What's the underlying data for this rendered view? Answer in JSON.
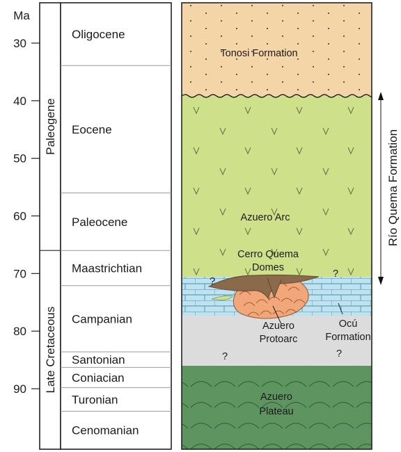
{
  "axis": {
    "unit_label": "Ma",
    "ticks": [
      "30",
      "40",
      "50",
      "60",
      "70",
      "80",
      "90"
    ]
  },
  "periods": [
    {
      "label": "Paleogene",
      "from_ma": 23.0,
      "to_ma": 66.0
    },
    {
      "label": "Late Cretaceous",
      "from_ma": 66.0,
      "to_ma": 100.5
    }
  ],
  "stages": [
    {
      "label": "Oligocene",
      "from_ma": 23.0,
      "to_ma": 33.9
    },
    {
      "label": "Eocene",
      "from_ma": 33.9,
      "to_ma": 56.0
    },
    {
      "label": "Paleocene",
      "from_ma": 56.0,
      "to_ma": 66.0
    },
    {
      "label": "Maastrichtian",
      "from_ma": 66.0,
      "to_ma": 72.1
    },
    {
      "label": "Campanian",
      "from_ma": 72.1,
      "to_ma": 83.6
    },
    {
      "label": "Santonian",
      "from_ma": 83.6,
      "to_ma": 86.3
    },
    {
      "label": "Coniacian",
      "from_ma": 86.3,
      "to_ma": 89.8
    },
    {
      "label": "Turonian",
      "from_ma": 89.8,
      "to_ma": 93.9
    },
    {
      "label": "Cenomanian",
      "from_ma": 93.9,
      "to_ma": 100.5
    }
  ],
  "units": {
    "tonosi": "Tonosi Formation",
    "arc": "Azuero Arc",
    "domes": [
      "Cerro Quema",
      "Domes"
    ],
    "protoarc": [
      "Azuero",
      "Protoarc"
    ],
    "ocu": [
      "Ocú",
      "Formation"
    ],
    "plateau": [
      "Azuero",
      "Plateau"
    ]
  },
  "bracket_label": "Río Quema Formation",
  "uncertain_marker": "?",
  "colors": {
    "tonosi": "#f4d5a8",
    "arc": "#cfe08a",
    "ocu": "#bfe2ef",
    "gap": "#dcdcdc",
    "plateau": "#5e9460",
    "protoarc": "#f1a77a",
    "domes": "#8a6a4a"
  }
}
